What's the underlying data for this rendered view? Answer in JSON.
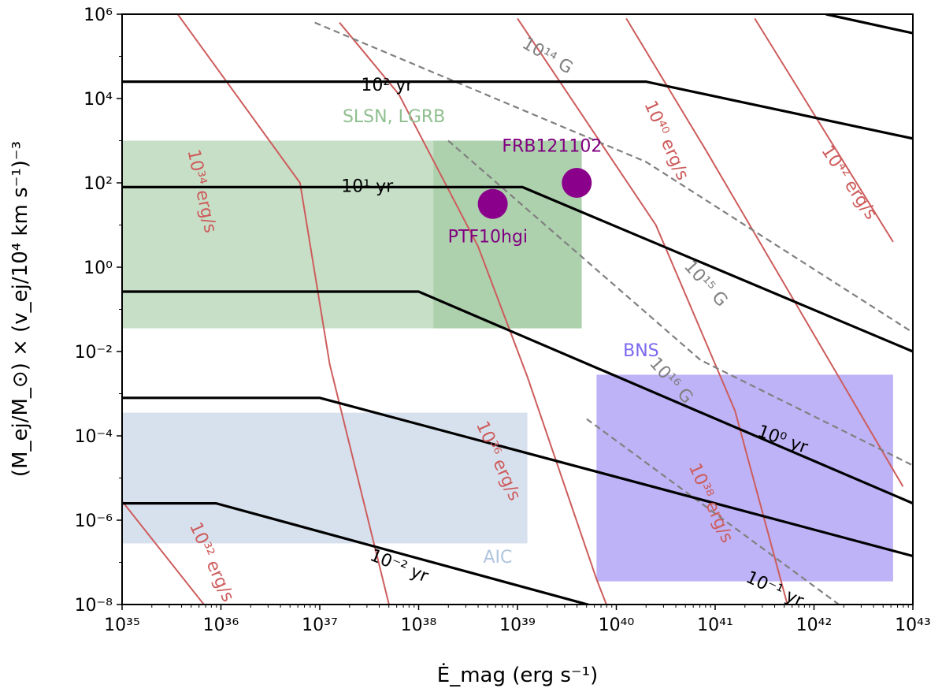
{
  "chart_data": {
    "type": "line",
    "xscale": "log",
    "yscale": "log",
    "xlim_log10": [
      35,
      43
    ],
    "ylim_log10": [
      -8,
      6
    ],
    "xlabel": "Ė_mag (erg s⁻¹)",
    "ylabel": "(M_ej/M_⊙) × (v_ej/10⁴ km s⁻¹)⁻³",
    "xticks_log10": [
      35,
      36,
      37,
      38,
      39,
      40,
      41,
      42,
      43
    ],
    "yticks_log10": [
      -8,
      -6,
      -4,
      -2,
      0,
      2,
      4,
      6
    ],
    "regions": [
      {
        "label": "SLSN, LGRB",
        "x_log10": [
          35,
          39.65
        ],
        "y_log10": [
          -1.45,
          3.0
        ],
        "color": "#8fbf8f",
        "opacity": 0.5
      },
      {
        "label": "",
        "x_log10": [
          38.15,
          39.65
        ],
        "y_log10": [
          -1.45,
          3.0
        ],
        "color": "#8fbf8f",
        "opacity": 0.45
      },
      {
        "label": "BNS",
        "x_log10": [
          39.8,
          42.8
        ],
        "y_log10": [
          -7.45,
          -2.55
        ],
        "color": "#7b68ee",
        "opacity": 0.5
      },
      {
        "label": "AIC",
        "x_log10": [
          35,
          39.1
        ],
        "y_log10": [
          -6.55,
          -3.45
        ],
        "color": "#b0c4de",
        "opacity": 0.5
      }
    ],
    "black_lines": [
      {
        "label": "10² yr",
        "label_x": 37.68,
        "label_y": 4.3,
        "points_log10": [
          [
            35,
            4.4
          ],
          [
            40.3,
            4.4
          ],
          [
            43,
            3.05
          ]
        ]
      },
      {
        "label": "10¹ yr",
        "label_x": 37.48,
        "label_y": 1.9,
        "points_log10": [
          [
            35,
            1.9
          ],
          [
            39.05,
            1.9
          ],
          [
            43,
            -2.0
          ]
        ]
      },
      {
        "label": "",
        "label_x": null,
        "label_y": null,
        "points_log10": [
          [
            35,
            -0.58
          ],
          [
            38.0,
            -0.58
          ],
          [
            43,
            -5.6
          ]
        ]
      },
      {
        "label": "10⁰ yr",
        "label_x": 41.68,
        "label_y": -4.1,
        "points_log10": [
          [
            35,
            -3.1
          ],
          [
            37.0,
            -3.1
          ],
          [
            43,
            -6.85
          ]
        ]
      },
      {
        "label": "10⁻¹ yr",
        "label_x": 41.6,
        "label_y": -7.65,
        "points_log10": [
          [
            35,
            -5.6
          ],
          [
            35.95,
            -5.6
          ],
          [
            43,
            -10.1
          ]
        ]
      },
      {
        "label": "10⁻² yr",
        "label_x": 37.8,
        "label_y": -7.1,
        "points_log10": []
      },
      {
        "label": "",
        "label_x": null,
        "label_y": null,
        "points_log10": [
          [
            42.12,
            6.0
          ],
          [
            43,
            5.55
          ]
        ]
      }
    ],
    "red_lines": [
      {
        "label": "10³² erg/s",
        "label_x": 35.9,
        "label_y": -7.0,
        "points_log10": [
          [
            35.0,
            -5.55
          ],
          [
            36.2,
            -9.1
          ]
        ]
      },
      {
        "label": "10³⁴ erg/s",
        "label_x": 35.8,
        "label_y": 1.8,
        "points_log10": [
          [
            35.5,
            6.2
          ],
          [
            36.8,
            2.0
          ],
          [
            37.1,
            -2.3
          ],
          [
            37.7,
            -8.0
          ]
        ]
      },
      {
        "label": "10³⁶ erg/s",
        "label_x": 38.8,
        "label_y": -4.6,
        "points_log10": [
          [
            37.2,
            5.8
          ],
          [
            37.8,
            4.1
          ],
          [
            38.6,
            0.5
          ],
          [
            39.1,
            -2.6
          ],
          [
            39.8,
            -7.4
          ],
          [
            40.0,
            -8.6
          ]
        ]
      },
      {
        "label": "10³⁸ erg/s",
        "label_x": 40.95,
        "label_y": -5.6,
        "points_log10": [
          [
            39.0,
            5.9
          ],
          [
            40.4,
            1.0
          ],
          [
            41.2,
            -3.4
          ],
          [
            41.8,
            -8.6
          ]
        ]
      },
      {
        "label": "10⁴⁰ erg/s",
        "label_x": 40.5,
        "label_y": 3.0,
        "points_log10": [
          [
            40.1,
            5.9
          ],
          [
            40.9,
            2.8
          ],
          [
            42.3,
            -2.8
          ],
          [
            42.9,
            -5.2
          ]
        ]
      },
      {
        "label": "10⁴² erg/s",
        "label_x": 42.35,
        "label_y": 2.0,
        "points_log10": [
          [
            41.4,
            5.9
          ],
          [
            42.8,
            0.6
          ]
        ]
      }
    ],
    "gray_dashed_lines": [
      {
        "label": "10¹⁴ G",
        "label_x": 39.3,
        "label_y": 5.0,
        "points_log10": [
          [
            36.95,
            5.8
          ],
          [
            40.3,
            2.5
          ],
          [
            43,
            -1.55
          ]
        ]
      },
      {
        "label": "10¹⁵ G",
        "label_x": 40.9,
        "label_y": -0.4,
        "points_log10": [
          [
            38.3,
            3.0
          ],
          [
            40.85,
            -2.2
          ],
          [
            43,
            -4.7
          ]
        ]
      },
      {
        "label": "10¹⁶ G",
        "label_x": 40.55,
        "label_y": -2.7,
        "points_log10": [
          [
            39.7,
            -3.6
          ],
          [
            42.6,
            -8.6
          ]
        ]
      }
    ],
    "points": [
      {
        "name": "PTF10hgi",
        "x_log10": 38.75,
        "y_log10": 1.5,
        "color": "#8b008b"
      },
      {
        "name": "FRB121102",
        "x_log10": 39.6,
        "y_log10": 2.0,
        "color": "#8b008b"
      }
    ]
  }
}
